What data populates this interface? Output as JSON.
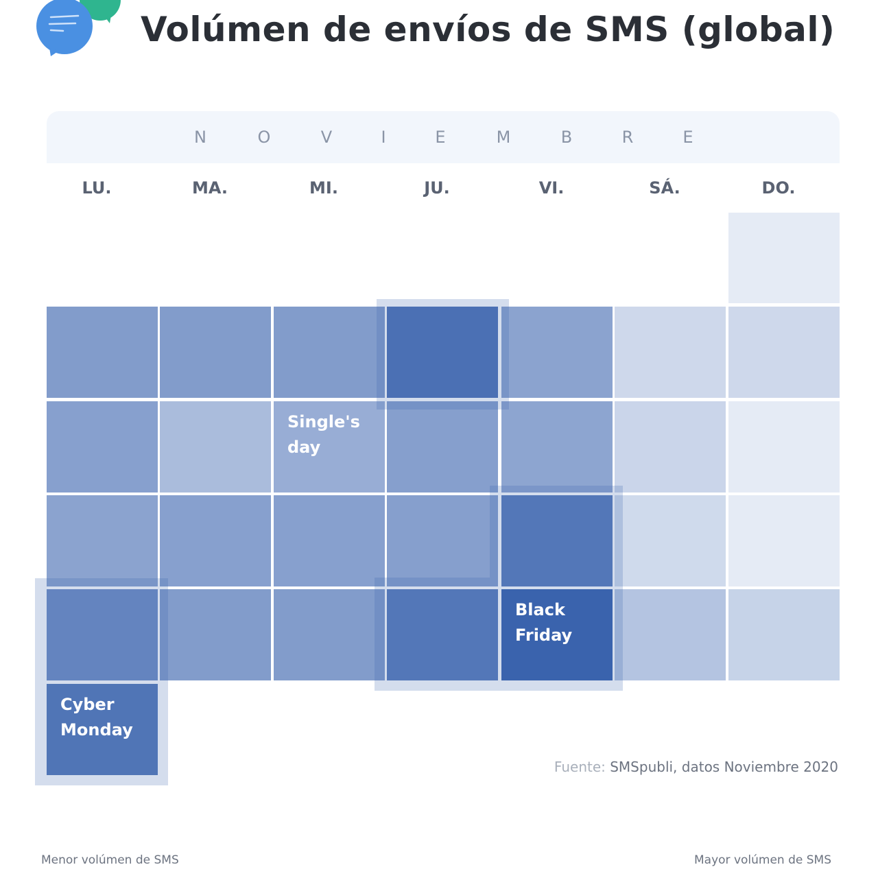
{
  "title": "Volúmen de envíos de SMS (global)",
  "logo_icon": "chat-bubbles-icon",
  "colors": {
    "low": "#eef2f9",
    "high": "#3a63ad",
    "title": "#2b2f36",
    "bubble_blue": "#4a90e2",
    "bubble_green": "#2fb58f"
  },
  "month_letters": [
    "N",
    "O",
    "V",
    "I",
    "E",
    "M",
    "B",
    "R",
    "E"
  ],
  "chart_data": {
    "type": "heatmap",
    "title": "Volúmen de envíos de SMS (global)",
    "month": "NOVIEMBRE",
    "weekdays": [
      "LU.",
      "MA.",
      "MI.",
      "JU.",
      "VI.",
      "SÁ.",
      "DO."
    ],
    "value_scale": "relative SMS volume (0 = lowest, 100 = highest), read from fill intensity",
    "weeks": [
      [
        null,
        null,
        null,
        null,
        null,
        null,
        5
      ],
      [
        60,
        60,
        60,
        88,
        55,
        18,
        18
      ],
      [
        57,
        38,
        48,
        58,
        54,
        20,
        5
      ],
      [
        55,
        57,
        57,
        58,
        82,
        17,
        5
      ],
      [
        70,
        60,
        60,
        82,
        100,
        32,
        22
      ],
      [
        84,
        null,
        null,
        null,
        null,
        null,
        null
      ]
    ],
    "annotations": [
      {
        "label": "Single's\nday",
        "week": 2,
        "weekday": 2
      },
      {
        "label": "Black\nFriday",
        "week": 4,
        "weekday": 4
      },
      {
        "label": "Cyber\nMonday",
        "week": 5,
        "weekday": 0
      }
    ],
    "legend": {
      "low_label": "Menor volúmen de SMS",
      "high_label": "Mayor volúmen de SMS"
    }
  },
  "source": {
    "label": "Fuente:",
    "text": "SMSpubli, datos Noviembre 2020"
  }
}
